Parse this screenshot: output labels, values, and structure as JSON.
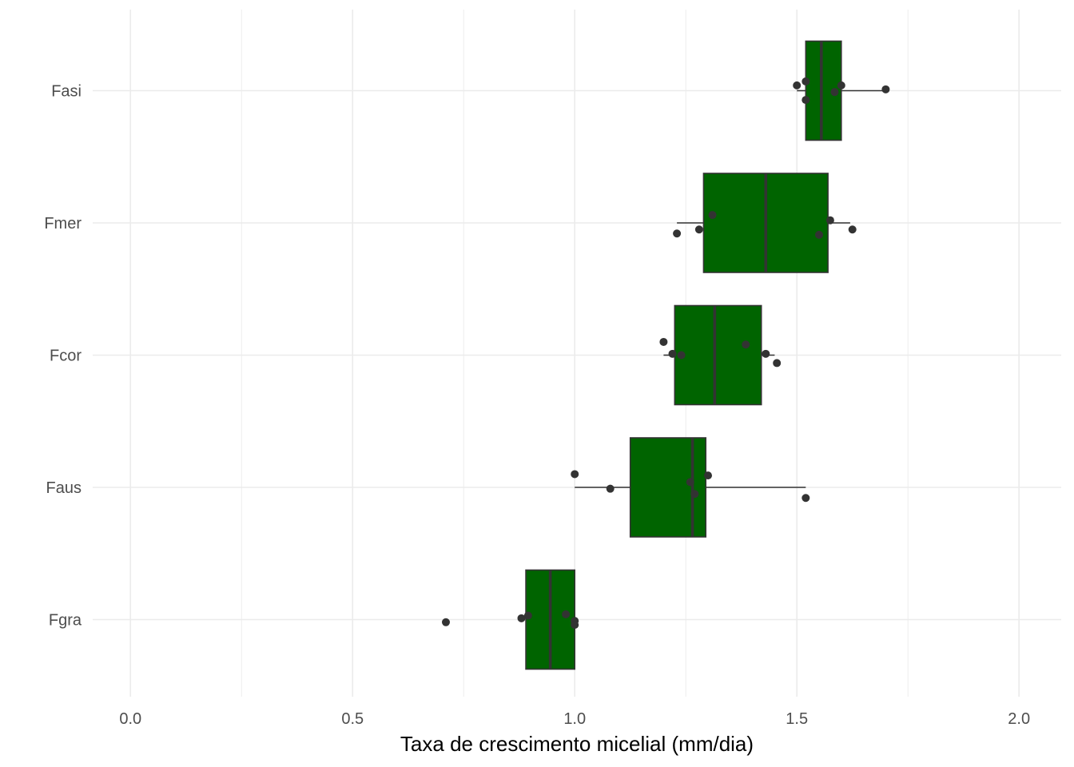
{
  "chart_data": {
    "type": "boxplot",
    "orientation": "horizontal",
    "title": "",
    "xlabel": "Taxa de crescimento micelial (mm/dia)",
    "ylabel": "",
    "xlim": [
      -0.085,
      2.095
    ],
    "x_ticks": [
      0.0,
      0.5,
      1.0,
      1.5,
      2.0
    ],
    "x_tick_labels": [
      "0.0",
      "0.5",
      "1.0",
      "1.5",
      "2.0"
    ],
    "grid": true,
    "legend": "none",
    "box_fill": "#006400",
    "box_stroke": "#333333",
    "point_color": "#333333",
    "grid_color": "#ebebeb",
    "categories": [
      "Fasi",
      "Fmer",
      "Fcor",
      "Faus",
      "Fgra"
    ],
    "boxes": [
      {
        "name": "Fasi",
        "whisker_low": 1.5,
        "q1": 1.52,
        "median": 1.555,
        "q3": 1.6,
        "whisker_high": 1.7,
        "points": [
          [
            1.5,
            0.04
          ],
          [
            1.52,
            0.07
          ],
          [
            1.6,
            0.04
          ],
          [
            1.52,
            -0.07
          ],
          [
            1.585,
            -0.01
          ],
          [
            1.7,
            0.01
          ]
        ]
      },
      {
        "name": "Fmer",
        "whisker_low": 1.23,
        "q1": 1.29,
        "median": 1.43,
        "q3": 1.57,
        "whisker_high": 1.62,
        "points": [
          [
            1.23,
            -0.08
          ],
          [
            1.28,
            -0.05
          ],
          [
            1.31,
            0.06
          ],
          [
            1.575,
            0.02
          ],
          [
            1.55,
            -0.09
          ],
          [
            1.625,
            -0.05
          ]
        ]
      },
      {
        "name": "Fcor",
        "whisker_low": 1.2,
        "q1": 1.225,
        "median": 1.315,
        "q3": 1.42,
        "whisker_high": 1.45,
        "points": [
          [
            1.2,
            0.1
          ],
          [
            1.22,
            0.01
          ],
          [
            1.24,
            0.0
          ],
          [
            1.385,
            0.08
          ],
          [
            1.43,
            0.01
          ],
          [
            1.455,
            -0.06
          ]
        ]
      },
      {
        "name": "Faus",
        "whisker_low": 1.0,
        "q1": 1.125,
        "median": 1.265,
        "q3": 1.295,
        "whisker_high": 1.52,
        "points": [
          [
            1.0,
            0.1
          ],
          [
            1.08,
            -0.01
          ],
          [
            1.26,
            0.04
          ],
          [
            1.27,
            -0.05
          ],
          [
            1.3,
            0.09
          ],
          [
            1.52,
            -0.08
          ]
        ]
      },
      {
        "name": "Fgra",
        "whisker_low": 0.89,
        "q1": 0.89,
        "median": 0.945,
        "q3": 1.0,
        "whisker_high": 1.0,
        "points": [
          [
            0.71,
            -0.02
          ],
          [
            0.88,
            0.01
          ],
          [
            0.895,
            0.03
          ],
          [
            0.98,
            0.04
          ],
          [
            1.0,
            -0.01
          ],
          [
            1.0,
            -0.04
          ]
        ]
      }
    ]
  }
}
